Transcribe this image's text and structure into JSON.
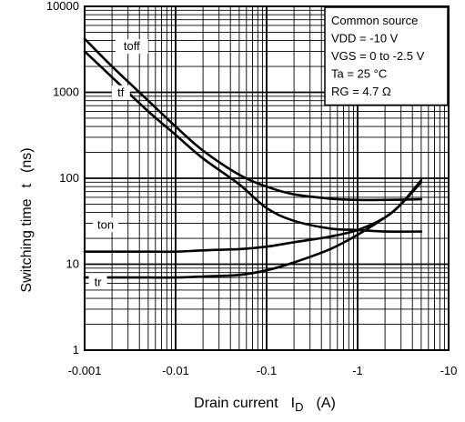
{
  "chart_data": {
    "type": "line",
    "title": "",
    "xscale": "log",
    "yscale": "log",
    "xlim": [
      -0.001,
      -10
    ],
    "ylim": [
      1,
      10000
    ],
    "grid": true,
    "x_tick_labels": [
      "-0.001",
      "-0.01",
      "-0.1",
      "-1",
      "-10"
    ],
    "y_tick_labels": [
      "1",
      "10",
      "100",
      "1000",
      "10000"
    ],
    "xlabel": {
      "text": "Drain current",
      "symbol": "I",
      "subscript": "D",
      "unit": "(A)"
    },
    "ylabel": {
      "text": "Switching time",
      "symbol": "t",
      "unit": "(ns)"
    },
    "conditions": [
      "Common source",
      "VDD = -10 V",
      "VGS = 0 to -2.5 V",
      "Ta = 25 °C",
      "RG = 4.7 Ω"
    ],
    "legend_position": "top-right",
    "series": [
      {
        "name": "toff",
        "x": [
          -0.001,
          -0.002,
          -0.005,
          -0.01,
          -0.02,
          -0.05,
          -0.1,
          -0.2,
          -0.5,
          -1,
          -2,
          -5
        ],
        "y": [
          4200,
          2000,
          800,
          400,
          210,
          110,
          80,
          65,
          58,
          56,
          56,
          57
        ]
      },
      {
        "name": "tf",
        "x": [
          -0.001,
          -0.002,
          -0.005,
          -0.01,
          -0.02,
          -0.05,
          -0.1,
          -0.2,
          -0.5,
          -1,
          -2,
          -5
        ],
        "y": [
          3000,
          1500,
          600,
          320,
          170,
          85,
          45,
          32,
          26,
          25,
          24,
          24
        ]
      },
      {
        "name": "ton",
        "x": [
          -0.001,
          -0.002,
          -0.005,
          -0.01,
          -0.02,
          -0.05,
          -0.1,
          -0.2,
          -0.5,
          -1,
          -2,
          -3,
          -5
        ],
        "y": [
          14,
          14,
          14,
          14,
          14.5,
          15,
          16,
          18,
          21,
          25,
          35,
          50,
          90
        ]
      },
      {
        "name": "tr",
        "x": [
          -0.001,
          -0.002,
          -0.005,
          -0.01,
          -0.02,
          -0.05,
          -0.1,
          -0.2,
          -0.5,
          -1,
          -2,
          -3,
          -5
        ],
        "y": [
          7,
          7,
          7,
          7,
          7.2,
          7.5,
          8.5,
          10.5,
          15,
          22,
          35,
          50,
          95
        ]
      }
    ]
  }
}
